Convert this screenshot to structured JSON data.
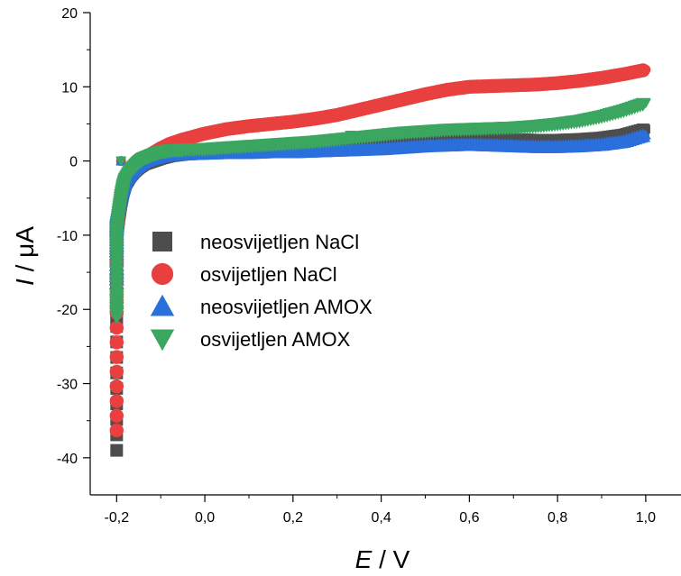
{
  "chart_data": {
    "type": "scatter",
    "xlabel": {
      "symbol": "E",
      "unit": " / V"
    },
    "ylabel": {
      "symbol": "I",
      "unit": " / μA"
    },
    "xlim": [
      -0.26,
      1.08
    ],
    "ylim": [
      -45,
      20
    ],
    "x_ticks": [
      -0.2,
      0.0,
      0.2,
      0.4,
      0.6,
      0.8,
      1.0
    ],
    "x_tick_labels": [
      "-0,2",
      "0,0",
      "0,2",
      "0,4",
      "0,6",
      "0,8",
      "1,0"
    ],
    "y_ticks": [
      -40,
      -30,
      -20,
      -10,
      0,
      10,
      20
    ],
    "y_tick_labels": [
      "-40",
      "-30",
      "-20",
      "-10",
      "0",
      "10",
      "20"
    ],
    "grid": false,
    "legend_position": "center-left",
    "series": [
      {
        "name": "neosvijetljen NaCl",
        "marker": "square",
        "color": "#4d4d4d",
        "x": [
          -0.2,
          -0.2,
          -0.2,
          -0.2,
          -0.195,
          -0.19,
          -0.185,
          -0.18,
          -0.17,
          -0.16,
          -0.15,
          -0.14,
          -0.12,
          -0.1,
          -0.08,
          -0.05,
          0.0,
          0.05,
          0.1,
          0.15,
          0.2,
          0.25,
          0.3,
          0.35,
          0.4,
          0.45,
          0.5,
          0.55,
          0.6,
          0.65,
          0.7,
          0.75,
          0.8,
          0.85,
          0.9,
          0.95,
          1.0,
          -0.19
        ],
        "y": [
          -39.0,
          -22.3,
          -15.0,
          -10.0,
          -7.5,
          -5.5,
          -4.0,
          -3.0,
          -2.0,
          -1.3,
          -0.8,
          -0.4,
          0.0,
          0.4,
          0.7,
          0.9,
          1.1,
          1.3,
          1.4,
          1.5,
          1.6,
          1.7,
          1.8,
          1.9,
          2.1,
          2.4,
          2.7,
          3.0,
          3.1,
          3.0,
          2.9,
          2.8,
          2.8,
          2.9,
          3.1,
          3.5,
          4.3,
          0.0
        ]
      },
      {
        "name": "osvijetljen NaCl",
        "marker": "circle",
        "color": "#e8403f",
        "x": [
          -0.2,
          -0.2,
          -0.2,
          -0.2,
          -0.195,
          -0.19,
          -0.185,
          -0.18,
          -0.17,
          -0.16,
          -0.15,
          -0.14,
          -0.12,
          -0.1,
          -0.08,
          -0.05,
          0.0,
          0.05,
          0.1,
          0.15,
          0.2,
          0.25,
          0.3,
          0.35,
          0.4,
          0.45,
          0.5,
          0.55,
          0.6,
          0.65,
          0.7,
          0.75,
          0.8,
          0.85,
          0.9,
          0.95,
          1.0,
          -0.19
        ],
        "y": [
          -36.3,
          -20.5,
          -14.0,
          -9.5,
          -7.0,
          -5.0,
          -3.5,
          -2.5,
          -1.5,
          -0.8,
          -0.2,
          0.3,
          1.0,
          1.7,
          2.3,
          2.9,
          3.7,
          4.3,
          4.7,
          5.0,
          5.3,
          5.7,
          6.2,
          6.9,
          7.6,
          8.3,
          9.0,
          9.6,
          10.0,
          10.1,
          10.2,
          10.3,
          10.5,
          10.8,
          11.2,
          11.7,
          12.3,
          0.0
        ]
      },
      {
        "name": "neosvijetljen AMOX",
        "marker": "triangle-up",
        "color": "#2a6fdb",
        "x": [
          -0.2,
          -0.2,
          -0.2,
          -0.2,
          -0.195,
          -0.19,
          -0.185,
          -0.18,
          -0.17,
          -0.16,
          -0.15,
          -0.14,
          -0.12,
          -0.1,
          -0.08,
          -0.05,
          0.0,
          0.05,
          0.1,
          0.15,
          0.2,
          0.25,
          0.3,
          0.35,
          0.4,
          0.45,
          0.5,
          0.55,
          0.6,
          0.65,
          0.7,
          0.75,
          0.8,
          0.85,
          0.9,
          0.95,
          1.0,
          -0.19
        ],
        "y": [
          -16.5,
          -12.5,
          -9.5,
          -7.5,
          -6.0,
          -4.5,
          -3.5,
          -2.5,
          -1.7,
          -1.0,
          -0.5,
          -0.1,
          0.3,
          0.6,
          0.8,
          0.9,
          1.0,
          1.1,
          1.1,
          1.2,
          1.2,
          1.3,
          1.4,
          1.5,
          1.6,
          1.8,
          2.0,
          2.1,
          2.2,
          2.1,
          2.0,
          1.9,
          1.9,
          2.0,
          2.2,
          2.6,
          3.5,
          0.0
        ]
      },
      {
        "name": "osvijetljen AMOX",
        "marker": "triangle-down",
        "color": "#3aa660",
        "x": [
          -0.2,
          -0.2,
          -0.2,
          -0.2,
          -0.195,
          -0.19,
          -0.185,
          -0.18,
          -0.17,
          -0.16,
          -0.15,
          -0.14,
          -0.12,
          -0.1,
          -0.08,
          -0.05,
          0.0,
          0.05,
          0.1,
          0.15,
          0.2,
          0.25,
          0.3,
          0.35,
          0.4,
          0.45,
          0.5,
          0.55,
          0.6,
          0.65,
          0.7,
          0.75,
          0.8,
          0.85,
          0.9,
          0.95,
          1.0,
          0.33,
          -0.19
        ],
        "y": [
          -21.0,
          -18.0,
          -13.0,
          -9.5,
          -7.0,
          -5.0,
          -3.5,
          -2.5,
          -1.5,
          -0.8,
          -0.2,
          0.3,
          0.8,
          1.2,
          1.4,
          1.5,
          1.6,
          1.8,
          2.0,
          2.2,
          2.4,
          2.6,
          2.9,
          3.2,
          3.5,
          3.8,
          4.0,
          4.2,
          4.3,
          4.4,
          4.5,
          4.7,
          5.0,
          5.4,
          6.0,
          6.8,
          7.8,
          3.5,
          0.0
        ]
      }
    ]
  }
}
